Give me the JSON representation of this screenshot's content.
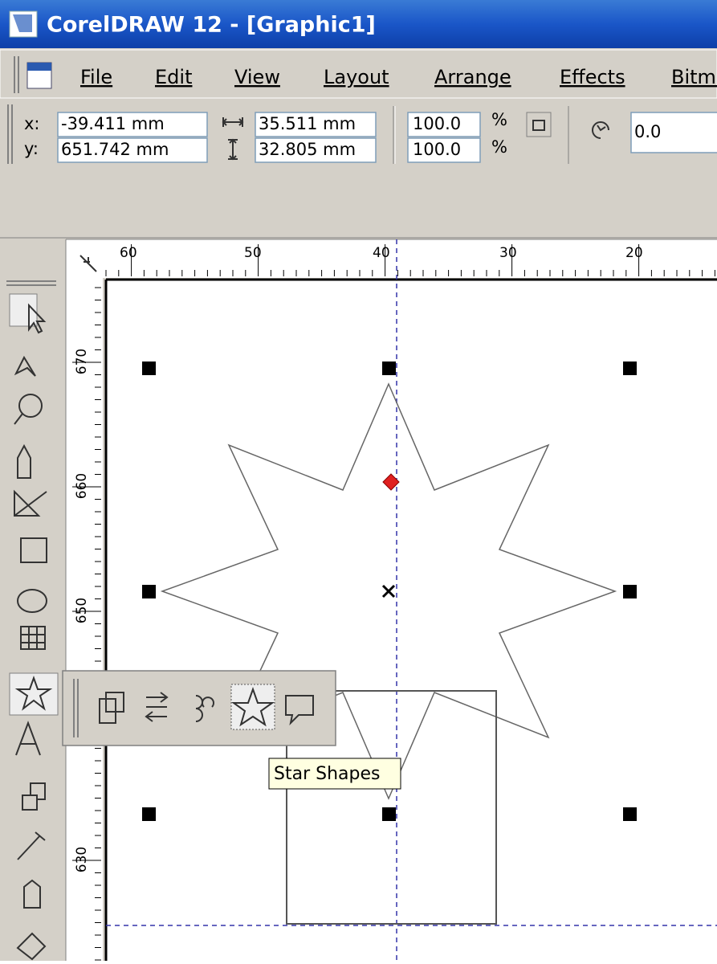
{
  "window": {
    "title": "CorelDRAW 12 - [Graphic1]"
  },
  "menu": [
    "File",
    "Edit",
    "View",
    "Layout",
    "Arrange",
    "Effects",
    "Bitmaps"
  ],
  "property_bar": {
    "x_label": "x:",
    "x": "-39.411 mm",
    "y_label": "y:",
    "y": "651.742 mm",
    "width": "35.511 mm",
    "height": "32.805 mm",
    "scale_x": "100.0",
    "scale_y": "100.0",
    "percent_x": "%",
    "percent_y": "%",
    "rotation": "0.0"
  },
  "rulers": {
    "horizontal": [
      "60",
      "50",
      "40",
      "30",
      "20"
    ],
    "vertical": [
      "670",
      "660",
      "650",
      "630"
    ]
  },
  "tooltip": "Star Shapes"
}
